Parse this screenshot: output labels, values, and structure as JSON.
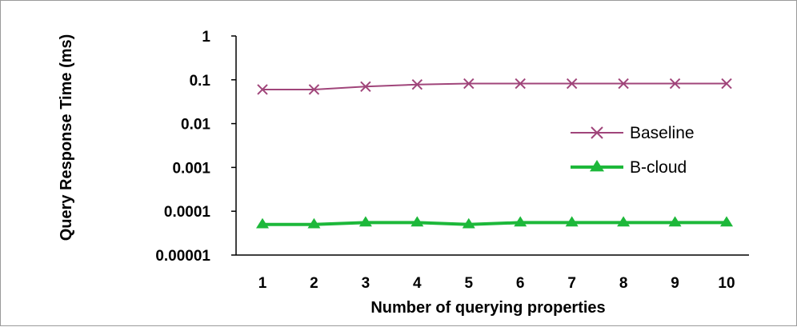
{
  "chart_data": {
    "type": "line",
    "title": "",
    "xlabel": "Number of querying properties",
    "ylabel": "Query Response Time (ms)",
    "y_scale": "log",
    "ylim": [
      1e-05,
      1
    ],
    "y_ticks": [
      "1",
      "0.1",
      "0.01",
      "0.001",
      "0.0001",
      "0.00001"
    ],
    "x": [
      "1",
      "2",
      "3",
      "4",
      "5",
      "6",
      "7",
      "8",
      "9",
      "10"
    ],
    "legend_position": "right",
    "grid": false,
    "series": [
      {
        "name": "Baseline",
        "marker": "x",
        "color": "#a0457a",
        "values": [
          0.06,
          0.06,
          0.07,
          0.078,
          0.082,
          0.082,
          0.082,
          0.082,
          0.082,
          0.082
        ]
      },
      {
        "name": "B-cloud",
        "marker": "triangle",
        "color": "#1db83a",
        "values": [
          5e-05,
          5e-05,
          5.5e-05,
          5.5e-05,
          5e-05,
          5.5e-05,
          5.5e-05,
          5.5e-05,
          5.5e-05,
          5.5e-05
        ]
      }
    ]
  }
}
